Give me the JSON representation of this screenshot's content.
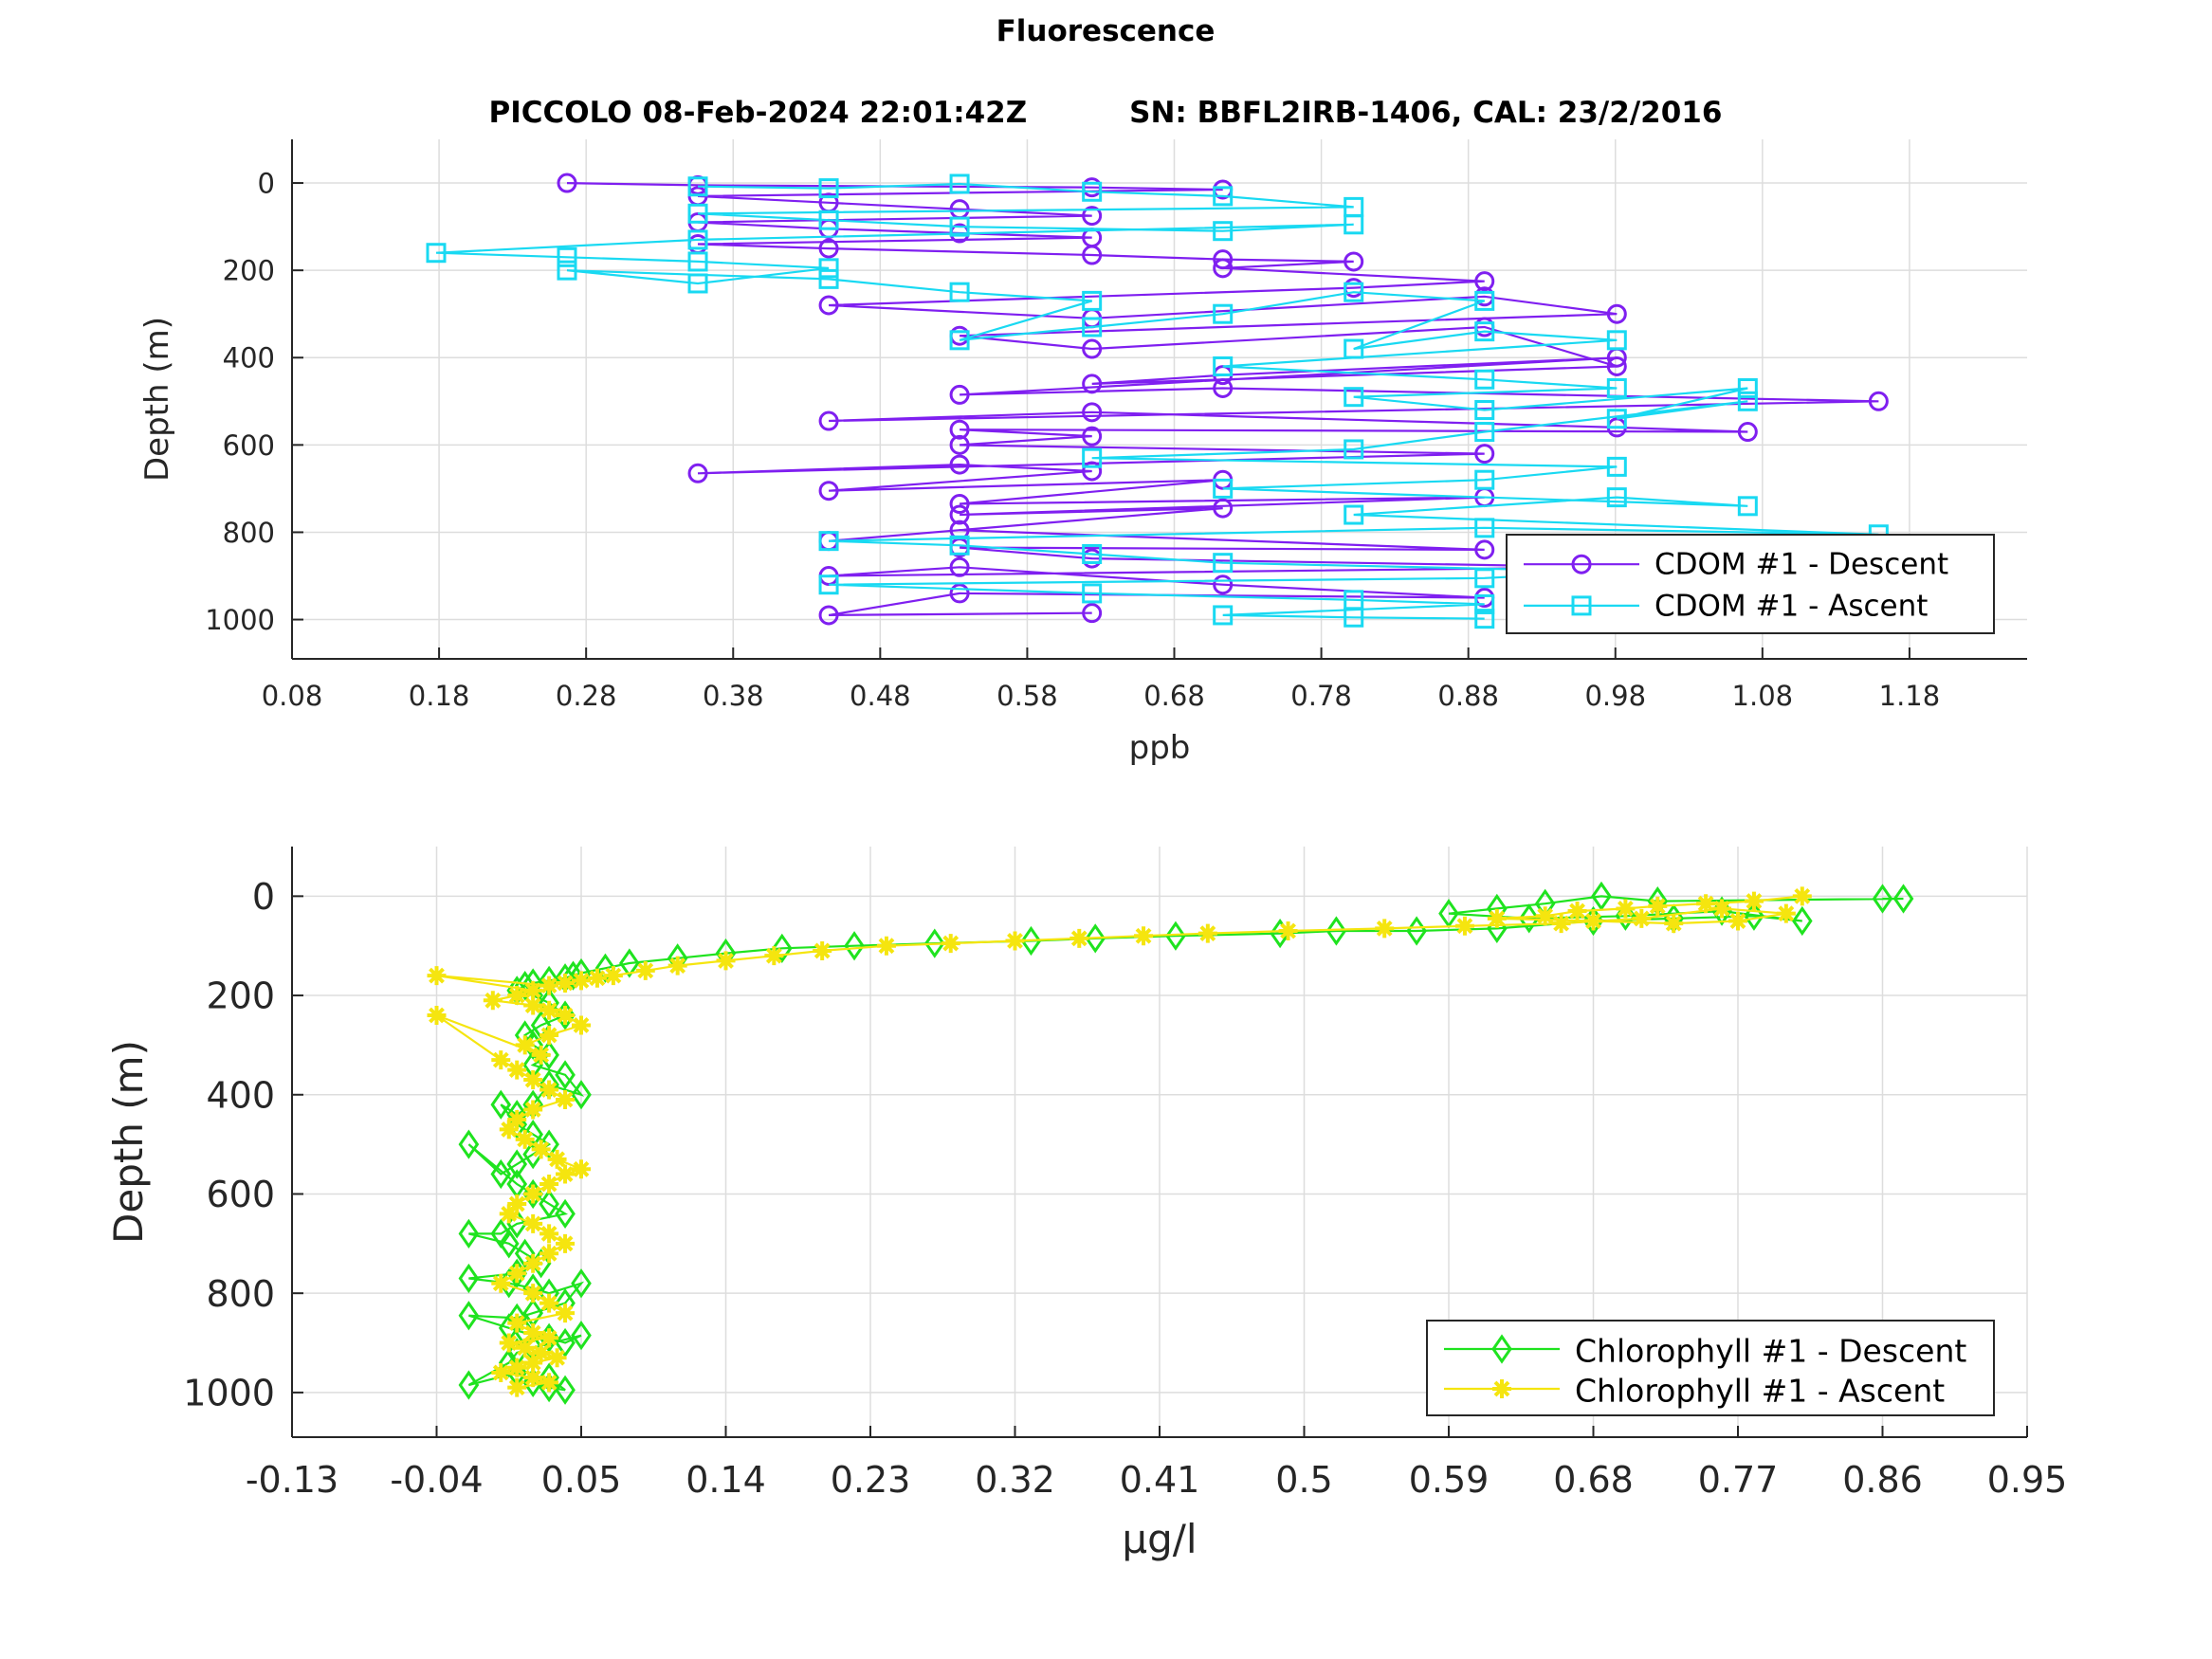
{
  "figure": {
    "title": "Fluorescence",
    "subtitle": "PICCOLO 08-Feb-2024 22:01:42Z          SN: BBFL2IRB-1406, CAL: 23/2/2016"
  },
  "chart_data": [
    {
      "type": "line",
      "title": "",
      "xlabel": "ppb",
      "ylabel": "Depth (m)",
      "xlim": [
        0.08,
        1.26
      ],
      "ylim": [
        -100,
        1090
      ],
      "y_reversed": true,
      "grid": true,
      "legend_position": "bottom-right",
      "xticks": [
        "0.08",
        "0.18",
        "0.28",
        "0.38",
        "0.48",
        "0.58",
        "0.68",
        "0.78",
        "0.88",
        "0.98",
        "1.08",
        "1.18"
      ],
      "yticks": [
        "0",
        "200",
        "400",
        "600",
        "800",
        "1000"
      ],
      "series": [
        {
          "name": "CDOM #1 - Descent",
          "color": "#7f1ff0",
          "marker": "circle",
          "x": [
            0.267,
            0.356,
            0.624,
            0.713,
            0.356,
            0.445,
            0.534,
            0.624,
            0.356,
            0.445,
            0.534,
            0.624,
            0.356,
            0.445,
            0.624,
            0.713,
            0.802,
            0.713,
            0.891,
            0.802,
            0.445,
            0.624,
            0.891,
            0.981,
            0.534,
            0.624,
            0.891,
            0.981,
            0.624,
            0.713,
            0.981,
            0.534,
            0.713,
            1.159,
            0.445,
            0.624,
            0.981,
            1.07,
            0.534,
            0.624,
            0.534,
            0.891,
            0.356,
            0.534,
            0.624,
            0.445,
            0.713,
            0.534,
            0.891,
            0.534,
            0.713,
            0.445,
            0.534,
            0.891,
            0.534,
            0.624,
            0.981,
            0.445,
            0.534,
            0.713,
            0.891,
            0.534,
            0.445,
            0.624
          ],
          "y": [
            0,
            5,
            10,
            15,
            30,
            45,
            60,
            75,
            90,
            105,
            115,
            125,
            140,
            150,
            165,
            175,
            180,
            195,
            225,
            240,
            280,
            310,
            260,
            300,
            350,
            380,
            330,
            420,
            460,
            440,
            400,
            485,
            470,
            500,
            545,
            525,
            560,
            570,
            565,
            580,
            600,
            620,
            665,
            645,
            660,
            705,
            680,
            735,
            720,
            760,
            745,
            820,
            795,
            840,
            835,
            860,
            880,
            900,
            880,
            920,
            950,
            940,
            990,
            985
          ]
        },
        {
          "name": "CDOM #1 - Ascent",
          "color": "#19d9f2",
          "marker": "square",
          "x": [
            0.356,
            0.445,
            0.534,
            0.624,
            0.713,
            0.802,
            0.356,
            0.445,
            0.534,
            0.713,
            0.802,
            0.356,
            0.178,
            0.267,
            0.356,
            0.445,
            0.356,
            0.267,
            0.445,
            0.534,
            0.624,
            0.534,
            0.624,
            0.713,
            0.802,
            0.891,
            0.802,
            0.891,
            0.981,
            0.713,
            0.891,
            0.981,
            0.802,
            0.891,
            1.07,
            0.981,
            1.07,
            0.891,
            0.802,
            0.624,
            0.981,
            0.891,
            0.713,
            1.07,
            0.981,
            0.802,
            1.159,
            0.891,
            0.445,
            0.534,
            0.624,
            0.713,
            0.981,
            0.891,
            0.445,
            0.624,
            0.802,
            0.891,
            0.713,
            0.802,
            0.891
          ],
          "y": [
            8,
            12,
            2,
            20,
            30,
            55,
            70,
            85,
            100,
            110,
            95,
            130,
            160,
            170,
            180,
            195,
            230,
            200,
            220,
            250,
            270,
            360,
            330,
            300,
            250,
            270,
            380,
            340,
            360,
            420,
            450,
            470,
            490,
            520,
            470,
            540,
            500,
            570,
            610,
            630,
            650,
            680,
            700,
            740,
            720,
            760,
            805,
            790,
            820,
            830,
            850,
            870,
            890,
            905,
            920,
            940,
            955,
            965,
            990,
            995,
            998
          ]
        }
      ]
    },
    {
      "type": "line",
      "title": "",
      "xlabel": "μg/l",
      "ylabel": "Depth (m)",
      "xlim": [
        -0.13,
        0.95
      ],
      "ylim": [
        -100,
        1090
      ],
      "y_reversed": true,
      "grid": true,
      "legend_position": "bottom-right",
      "xticks": [
        "-0.13",
        "-0.04",
        "0.05",
        "0.14",
        "0.23",
        "0.32",
        "0.41",
        "0.5",
        "0.59",
        "0.68",
        "0.77",
        "0.86",
        "0.95"
      ],
      "yticks": [
        "0",
        "200",
        "400",
        "600",
        "800",
        "1000"
      ],
      "series": [
        {
          "name": "Chlorophyll #1 - Descent",
          "color": "#1fe31f",
          "marker": "diamond",
          "x": [
            0.86,
            0.873,
            0.72,
            0.685,
            0.65,
            0.62,
            0.59,
            0.64,
            0.7,
            0.76,
            0.81,
            0.78,
            0.73,
            0.68,
            0.62,
            0.57,
            0.52,
            0.485,
            0.42,
            0.37,
            0.33,
            0.27,
            0.22,
            0.175,
            0.14,
            0.11,
            0.08,
            0.065,
            0.05,
            0.045,
            0.04,
            0.03,
            0.02,
            0.015,
            0.01,
            0.02,
            0.03,
            0.04,
            0.025,
            0.015,
            0.02,
            0.03,
            0.02,
            0.04,
            0.05,
            0.03,
            0.02,
            0.01,
            0.0,
            0.01,
            0.02,
            0.03,
            0.02,
            0.01,
            0.0,
            -0.02,
            0.01,
            0.02,
            0.03,
            0.04,
            0.01,
            0.0,
            -0.02,
            0.005,
            0.015,
            0.025,
            0.01,
            -0.02,
            0.005,
            0.02,
            0.03,
            0.05,
            0.04,
            0.02,
            0.01,
            -0.02,
            0.005,
            0.015,
            0.03,
            0.04,
            0.05,
            0.02,
            0.01,
            0.005,
            -0.02,
            0.01,
            0.02,
            0.03,
            0.04,
            0.03
          ],
          "y": [
            5,
            5,
            10,
            0,
            15,
            25,
            35,
            45,
            40,
            30,
            50,
            40,
            45,
            50,
            65,
            70,
            70,
            75,
            80,
            85,
            90,
            95,
            100,
            105,
            115,
            125,
            135,
            145,
            155,
            160,
            165,
            170,
            175,
            180,
            190,
            200,
            215,
            240,
            260,
            280,
            300,
            320,
            340,
            360,
            400,
            380,
            420,
            440,
            420,
            460,
            480,
            500,
            520,
            540,
            560,
            500,
            580,
            600,
            620,
            640,
            660,
            680,
            680,
            700,
            720,
            740,
            760,
            770,
            780,
            790,
            800,
            780,
            820,
            840,
            850,
            845,
            870,
            880,
            890,
            900,
            885,
            910,
            920,
            940,
            985,
            960,
            980,
            990,
            995,
            970
          ]
        },
        {
          "name": "Chlorophyll #1 - Ascent",
          "color": "#f5e50f",
          "marker": "asterisk",
          "x": [
            0.81,
            0.78,
            0.75,
            0.72,
            0.7,
            0.67,
            0.65,
            0.62,
            0.68,
            0.73,
            0.77,
            0.8,
            0.76,
            0.71,
            0.66,
            0.6,
            0.55,
            0.49,
            0.44,
            0.4,
            0.36,
            0.32,
            0.28,
            0.24,
            0.2,
            0.17,
            0.14,
            0.11,
            0.09,
            0.07,
            0.06,
            0.05,
            0.04,
            0.03,
            -0.04,
            0.02,
            0.01,
            -0.005,
            0.02,
            0.03,
            0.04,
            0.05,
            0.03,
            0.015,
            0.025,
            -0.04,
            0.0,
            0.01,
            0.02,
            0.03,
            0.04,
            0.02,
            0.01,
            0.005,
            0.015,
            0.025,
            0.035,
            0.05,
            0.04,
            0.03,
            0.02,
            0.01,
            0.005,
            0.02,
            0.03,
            0.04,
            0.03,
            0.02,
            0.01,
            0.0,
            0.02,
            0.03,
            0.04,
            0.01,
            0.02,
            0.03,
            0.005,
            0.015,
            0.025,
            0.035,
            0.02,
            0.01,
            0.0,
            0.02,
            0.03,
            0.01
          ],
          "y": [
            0,
            10,
            15,
            20,
            25,
            30,
            40,
            45,
            50,
            55,
            50,
            35,
            25,
            45,
            55,
            60,
            65,
            70,
            75,
            80,
            85,
            90,
            95,
            100,
            110,
            120,
            130,
            140,
            150,
            160,
            165,
            170,
            175,
            180,
            160,
            190,
            200,
            210,
            220,
            230,
            240,
            260,
            280,
            300,
            320,
            240,
            330,
            350,
            370,
            390,
            410,
            430,
            450,
            470,
            490,
            510,
            530,
            550,
            560,
            580,
            600,
            620,
            640,
            660,
            680,
            700,
            720,
            740,
            760,
            780,
            800,
            820,
            840,
            860,
            880,
            890,
            900,
            910,
            920,
            930,
            940,
            950,
            960,
            970,
            980,
            990
          ]
        }
      ]
    }
  ]
}
